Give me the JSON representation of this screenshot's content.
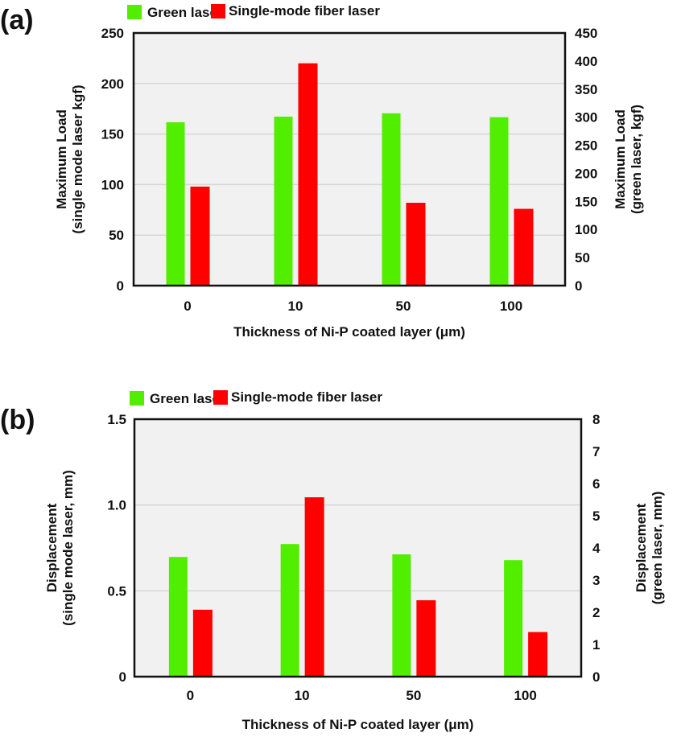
{
  "chart_data": [
    {
      "type": "bar",
      "panel_label": "(a)",
      "title": "",
      "categories": [
        "0",
        "10",
        "50",
        "100"
      ],
      "xlabel": "Thickness of Ni-P coated layer (μm)",
      "ylabel_left": [
        "Maximum  Load",
        "(single mode laser kgf)"
      ],
      "ylabel_right": [
        "Maximum  Load",
        "(green laser, kgf)"
      ],
      "ylim_left": [
        0,
        250
      ],
      "yticks_left": [
        "0",
        "50",
        "100",
        "150",
        "200",
        "250"
      ],
      "ylim_right": [
        0,
        450
      ],
      "yticks_right": [
        "0",
        "50",
        "100",
        "150",
        "200",
        "250",
        "300",
        "350",
        "400",
        "450"
      ],
      "grid": true,
      "legend_position": "top-center",
      "series": [
        {
          "name": "Green laser",
          "axis": "right",
          "color": "#52ee00",
          "values": [
            291,
            301,
            307,
            300
          ]
        },
        {
          "name": "Single-mode fiber laser",
          "axis": "left",
          "color": "#ff0000",
          "values": [
            98,
            220,
            82,
            76
          ]
        }
      ]
    },
    {
      "type": "bar",
      "panel_label": "(b)",
      "title": "",
      "categories": [
        "0",
        "10",
        "50",
        "100"
      ],
      "xlabel": "Thickness of Ni-P coated layer (μm)",
      "ylabel_left": [
        "Displacement",
        "(single mode laser, mm)"
      ],
      "ylabel_right": [
        "Displacement",
        "(green laser, mm)"
      ],
      "ylim_left": [
        0,
        1.5
      ],
      "yticks_left": [
        "0",
        "0.5",
        "1.0",
        "1.5"
      ],
      "ylim_right": [
        0,
        8
      ],
      "yticks_right": [
        "0",
        "1",
        "2",
        "3",
        "4",
        "5",
        "6",
        "7",
        "8"
      ],
      "grid": true,
      "legend_position": "top-center",
      "series": [
        {
          "name": "Green laser",
          "axis": "right",
          "color": "#52ee00",
          "values": [
            3.72,
            4.12,
            3.8,
            3.62
          ]
        },
        {
          "name": "Single-mode fiber laser",
          "axis": "left",
          "color": "#ff0000",
          "values": [
            0.39,
            1.045,
            0.445,
            0.26
          ]
        }
      ]
    }
  ],
  "colors": {
    "plot_background": "#f1f1f1",
    "gridline": "#d6d6d6",
    "frame": "#111111"
  }
}
